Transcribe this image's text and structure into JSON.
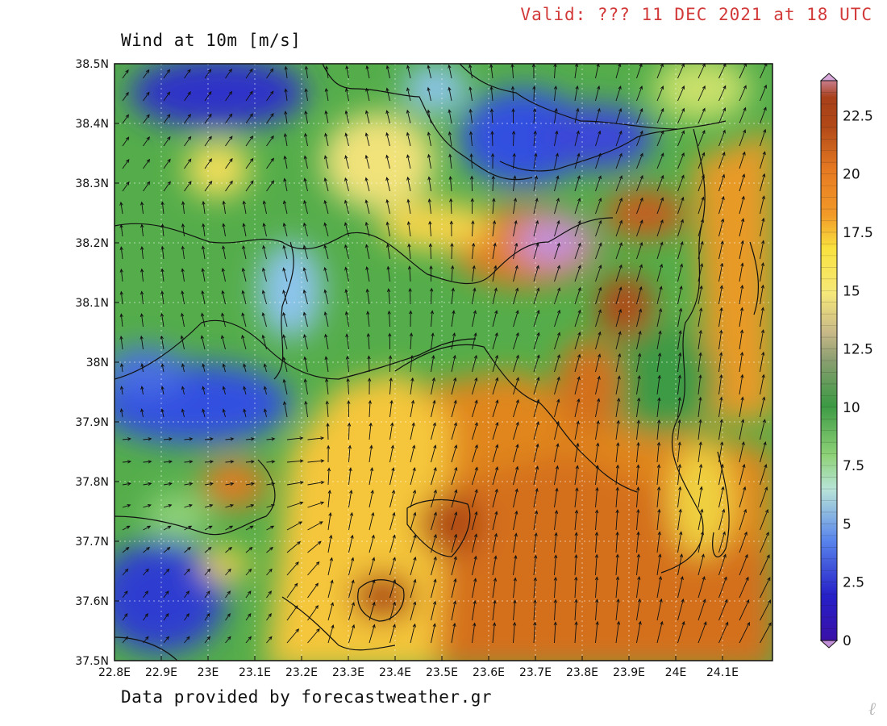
{
  "header": {
    "valid": "Valid: ??? 11 DEC 2021 at 18 UTC",
    "title": "Wind at 10m [m/s]"
  },
  "footer": {
    "credit": "Data provided by forecastweather.gr"
  },
  "map": {
    "lon_labels": [
      "22.8E",
      "22.9E",
      "23E",
      "23.1E",
      "23.2E",
      "23.3E",
      "23.4E",
      "23.5E",
      "23.6E",
      "23.7E",
      "23.8E",
      "23.9E",
      "24E",
      "24.1E"
    ],
    "lat_labels": [
      "38.5N",
      "38.4N",
      "38.3N",
      "38.2N",
      "38.1N",
      "38N",
      "37.9N",
      "37.8N",
      "37.7N",
      "37.6N",
      "37.5N"
    ]
  },
  "colorbar": {
    "min": 0,
    "max": 24,
    "labels": [
      "22.5",
      "20",
      "17.5",
      "15",
      "12.5",
      "10",
      "7.5",
      "5",
      "2.5",
      "0"
    ],
    "colors": [
      "#c190d8",
      "#3a10a8",
      "#2620c8",
      "#3050e0",
      "#5a86ec",
      "#8cc4ec",
      "#b8e4d8",
      "#8fd278",
      "#5cb850",
      "#3c9a44",
      "#2f8a3a",
      "#8a9e70",
      "#c8b888",
      "#f6e87a",
      "#f9e23e",
      "#f8c530",
      "#f29a28",
      "#e67a22",
      "#cc5c1a",
      "#a8401a",
      "#c87c8c",
      "#d8a6d8"
    ]
  },
  "watermark": "ℓ"
}
